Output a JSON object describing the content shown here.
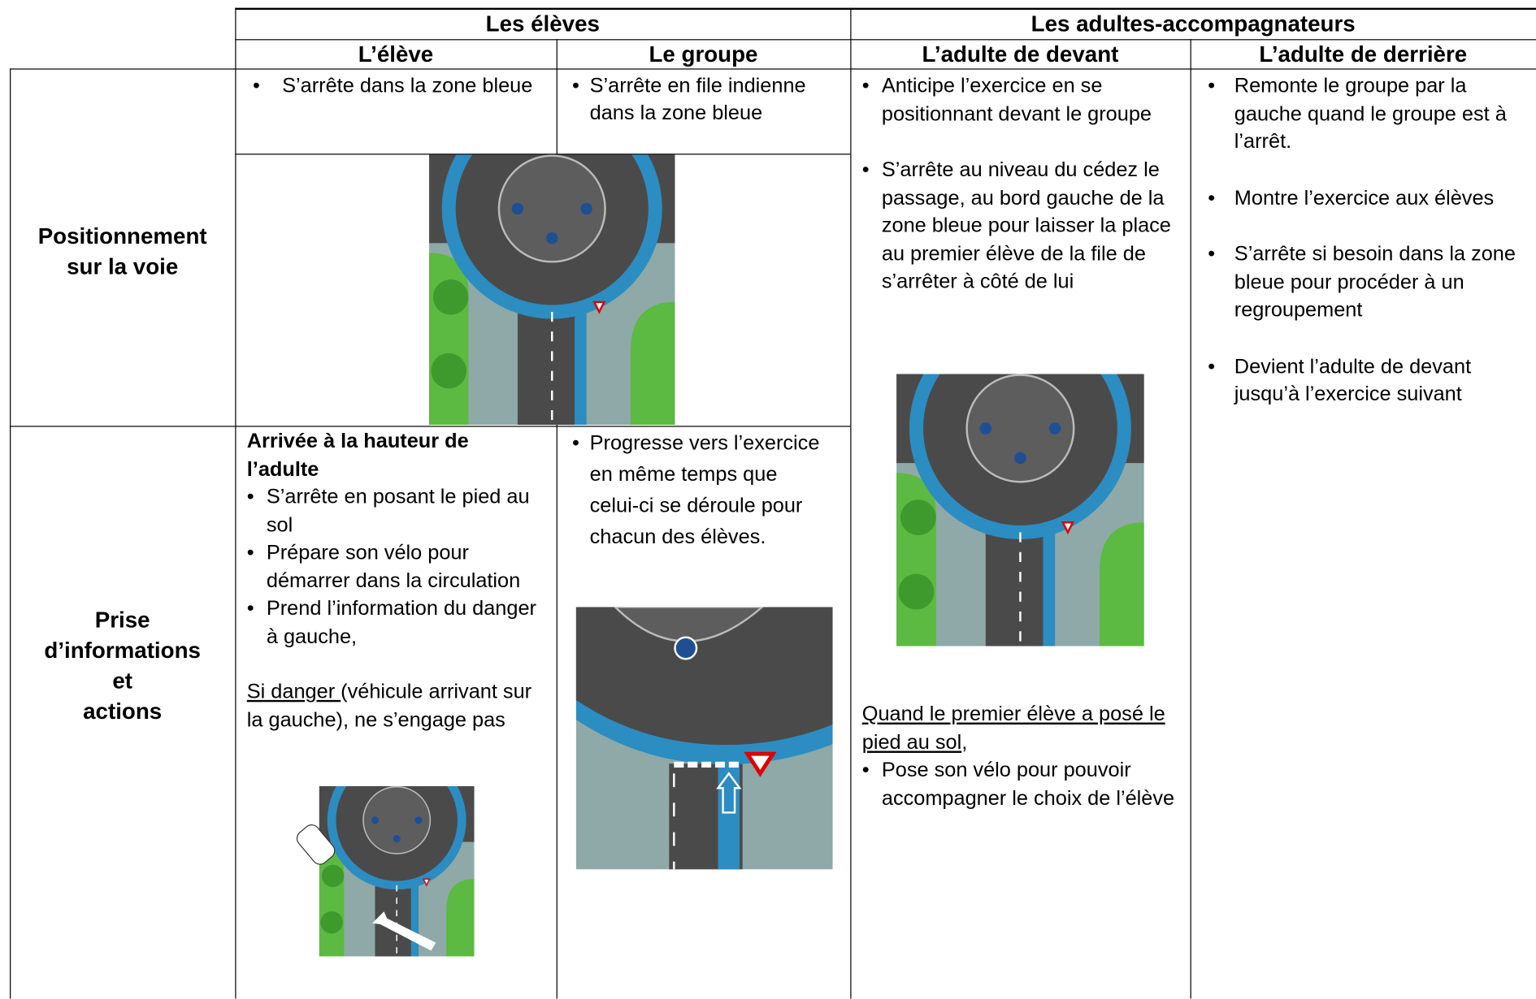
{
  "table": {
    "header": {
      "group_1": "Les élèves",
      "group_2": "Les adultes-accompagnateurs",
      "columns": [
        "L’élève",
        "Le groupe",
        "L’adulte de devant",
        "L’adulte de derrière"
      ]
    },
    "rows": [
      {
        "label": "Positionnement\nsur la voie",
        "eleve": [
          "S’arrête dans la zone bleue"
        ],
        "groupe": [
          "S’arrête en file indienne dans la zone bleue"
        ]
      },
      {
        "label": "Prise\nd’informations\net\nactions",
        "eleve": {
          "heading": "Arrivée à la hauteur de l’adulte",
          "items": [
            "S’arrête en posant le pied au sol",
            "Prépare son vélo pour démarrer dans la circulation",
            "Prend l’information du danger à gauche,"
          ],
          "danger_label": "Si danger ",
          "danger_text": "(véhicule arrivant sur la gauche), ne s’engage pas"
        },
        "groupe": [
          "Progresse vers l’exercice en même temps que celui-ci se déroule pour chacun des élèves."
        ]
      }
    ],
    "adulte_devant": {
      "items": [
        "Anticipe l’exercice en se positionnant devant le groupe",
        "S’arrête au niveau du cédez le passage, au bord gauche de la zone bleue pour laisser la place au premier élève de la file de s’arrêter à côté de lui"
      ],
      "note_underlined": "Quand le premier élève a posé le pied au sol",
      "note_rest": ",",
      "note_items": [
        "Pose son vélo pour pouvoir accompagner le choix de l’élève"
      ]
    },
    "adulte_derriere": {
      "items": [
        "Remonte le groupe par la gauche quand le groupe est à l’arrêt.",
        "Montre l’exercice aux élèves",
        "S’arrête si besoin dans la zone bleue pour procéder à un regroupement",
        "Devient l’adulte de devant jusqu’à l’exercice suivant"
      ]
    }
  }
}
